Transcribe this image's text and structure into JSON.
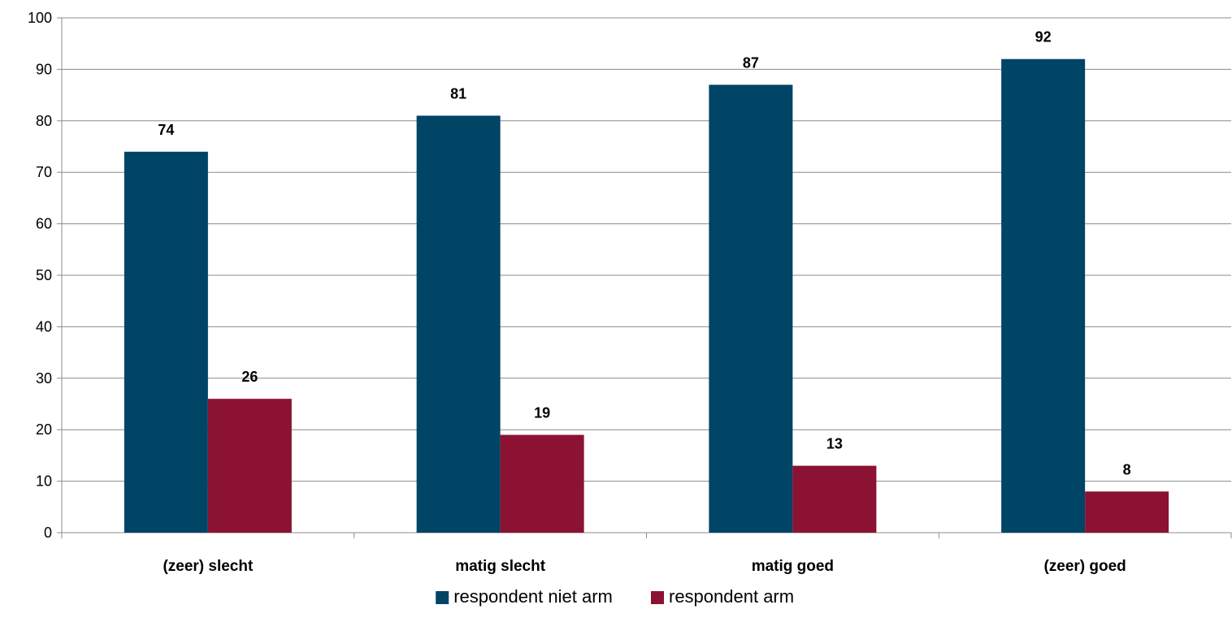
{
  "chart_data": {
    "type": "bar",
    "title": "",
    "xlabel": "",
    "ylabel": "",
    "categories": [
      "(zeer) slecht",
      "matig slecht",
      "matig goed",
      "(zeer) goed"
    ],
    "series": [
      {
        "name": "respondent niet arm",
        "color": "#004466",
        "values": [
          74,
          81,
          87,
          92
        ]
      },
      {
        "name": "respondent arm",
        "color": "#8B1232",
        "values": [
          26,
          19,
          13,
          8
        ]
      }
    ],
    "ylim": [
      0,
      100
    ],
    "yticks": [
      "0",
      "10",
      "20",
      "30",
      "40",
      "50",
      "60",
      "70",
      "80",
      "90",
      "100"
    ],
    "grid": true,
    "legend_position": "bottom"
  }
}
